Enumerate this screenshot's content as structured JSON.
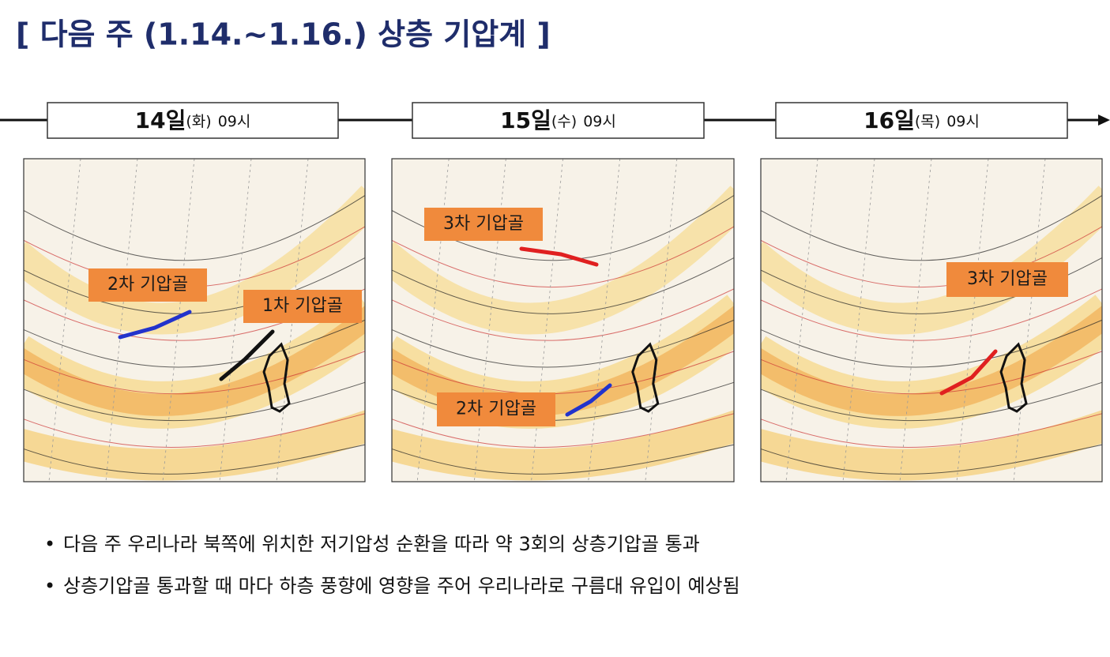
{
  "header": {
    "title": "[ 다음 주 (1.14.~1.16.) 상층 기압계 ]"
  },
  "panels": [
    {
      "day": "14일",
      "weekday": "(화)",
      "time": "09시",
      "troughs": [
        {
          "label": "2차 기압골"
        },
        {
          "label": "1차 기압골"
        }
      ]
    },
    {
      "day": "15일",
      "weekday": "(수)",
      "time": "09시",
      "troughs": [
        {
          "label": "3차 기압골"
        },
        {
          "label": "2차 기압골"
        }
      ]
    },
    {
      "day": "16일",
      "weekday": "(목)",
      "time": "09시",
      "troughs": [
        {
          "label": "3차 기압골"
        }
      ]
    }
  ],
  "bullets": [
    "다음 주 우리나라 북쪽에 위치한 저기압성 순환을 따라 약 3회의 상층기압골 통과",
    "상층기압골 통과할 때 마다 하층 풍향에 영향을 주어 우리나라로 구름대 유입이 예상됨"
  ]
}
